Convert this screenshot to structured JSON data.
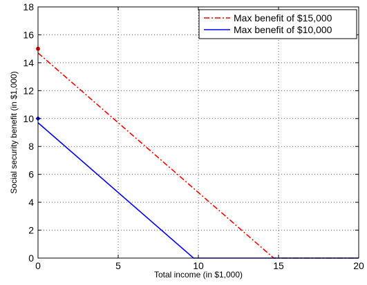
{
  "chart_data": {
    "type": "line",
    "title": "",
    "xlabel": "Total income (in $1,000)",
    "ylabel": "Social security benefit (in $1,000)",
    "xlim": [
      0,
      20
    ],
    "ylim": [
      0,
      18
    ],
    "xticks": [
      0,
      5,
      10,
      15,
      20
    ],
    "xtick_labels": [
      "0",
      "5",
      "10",
      "15",
      "20"
    ],
    "yticks": [
      0,
      2,
      4,
      6,
      8,
      10,
      12,
      14,
      16,
      18
    ],
    "ytick_labels": [
      "0",
      "2",
      "4",
      "6",
      "8",
      "10",
      "12",
      "14",
      "16",
      "18"
    ],
    "grid": true,
    "legend_position": "top-right",
    "series": [
      {
        "name": "Max benefit of $15,000",
        "color": "#ff0000",
        "line_style": "dash-dot",
        "marker_at_start": "circle",
        "marker_point": [
          0,
          15
        ],
        "x": [
          0,
          14.7,
          20
        ],
        "y": [
          14.7,
          0,
          0
        ]
      },
      {
        "name": "Max benefit of $10,000",
        "color": "#0000ff",
        "line_style": "solid",
        "marker_at_start": "diamond",
        "marker_point": [
          0,
          10
        ],
        "x": [
          0,
          9.7,
          20
        ],
        "y": [
          9.7,
          0,
          0
        ]
      }
    ]
  }
}
